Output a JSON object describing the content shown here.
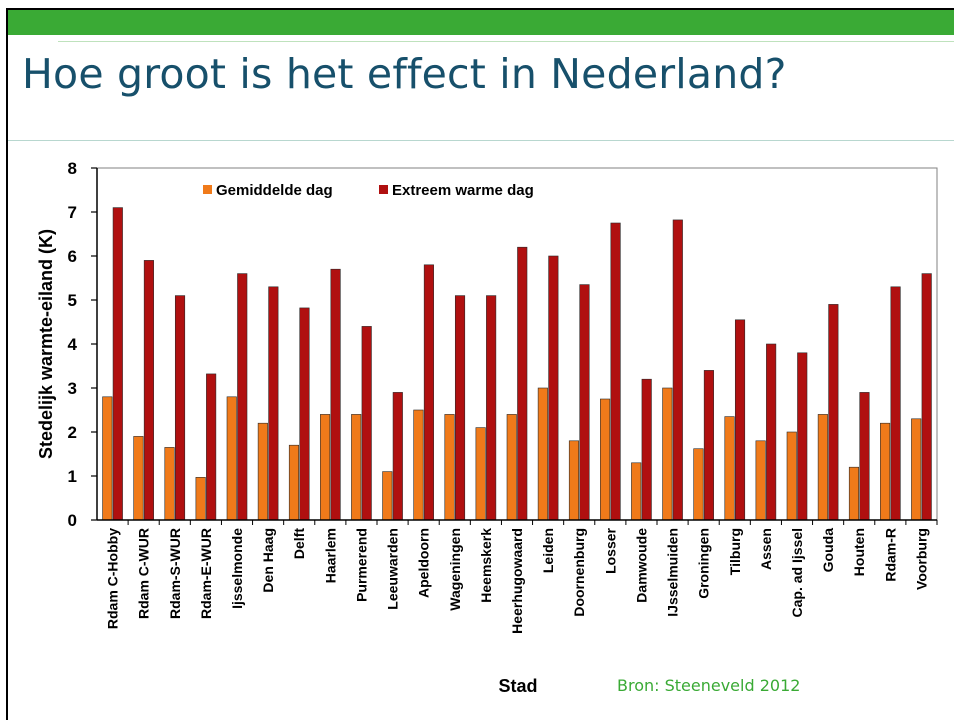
{
  "slide": {
    "title": "Hoe groot is het effect in Nederland?",
    "source": "Bron: Steeneveld 2012"
  },
  "colors": {
    "band": "#3aaa35",
    "title": "#17506b",
    "series_gemiddeld": "#f07a1a",
    "series_extreem": "#b01010"
  },
  "chart_data": {
    "type": "bar",
    "title": "",
    "xlabel": "Stad",
    "ylabel": "Stedelijk warmte-eiland (K)",
    "ylim": [
      0,
      8
    ],
    "yticks": [
      0,
      1,
      2,
      3,
      4,
      5,
      6,
      7,
      8
    ],
    "grid": false,
    "legend_position": "top-left",
    "categories": [
      "Rdam C-Hobby",
      "Rdam C-WUR",
      "Rdam-S-WUR",
      "Rdam-E-WUR",
      "Ijsselmonde",
      "Den Haag",
      "Delft",
      "Haarlem",
      "Purmerend",
      "Leeuwarden",
      "Apeldoorn",
      "Wageningen",
      "Heemskerk",
      "Heerhugowaard",
      "Leiden",
      "Doornenburg",
      "Losser",
      "Damwoude",
      "IJsselmuiden",
      "Groningen",
      "Tilburg",
      "Assen",
      "Cap. ad Ijssel",
      "Gouda",
      "Houten",
      "Rdam-R",
      "Voorburg"
    ],
    "series": [
      {
        "name": "Gemiddelde dag",
        "color": "#f07a1a",
        "values": [
          2.8,
          1.9,
          1.65,
          0.97,
          2.8,
          2.2,
          1.7,
          2.4,
          2.4,
          1.1,
          2.5,
          2.4,
          2.1,
          2.4,
          3.0,
          1.8,
          2.75,
          1.3,
          3.0,
          1.62,
          2.35,
          1.8,
          2.0,
          2.4,
          1.2,
          2.2,
          2.3
        ]
      },
      {
        "name": "Extreem warme dag",
        "color": "#b01010",
        "values": [
          7.1,
          5.9,
          5.1,
          3.32,
          5.6,
          5.3,
          4.82,
          5.7,
          4.4,
          2.9,
          5.8,
          5.1,
          5.1,
          6.2,
          6.0,
          5.35,
          6.75,
          3.2,
          6.82,
          3.4,
          4.55,
          4.0,
          3.8,
          4.9,
          2.9,
          5.3,
          5.6
        ]
      }
    ]
  }
}
